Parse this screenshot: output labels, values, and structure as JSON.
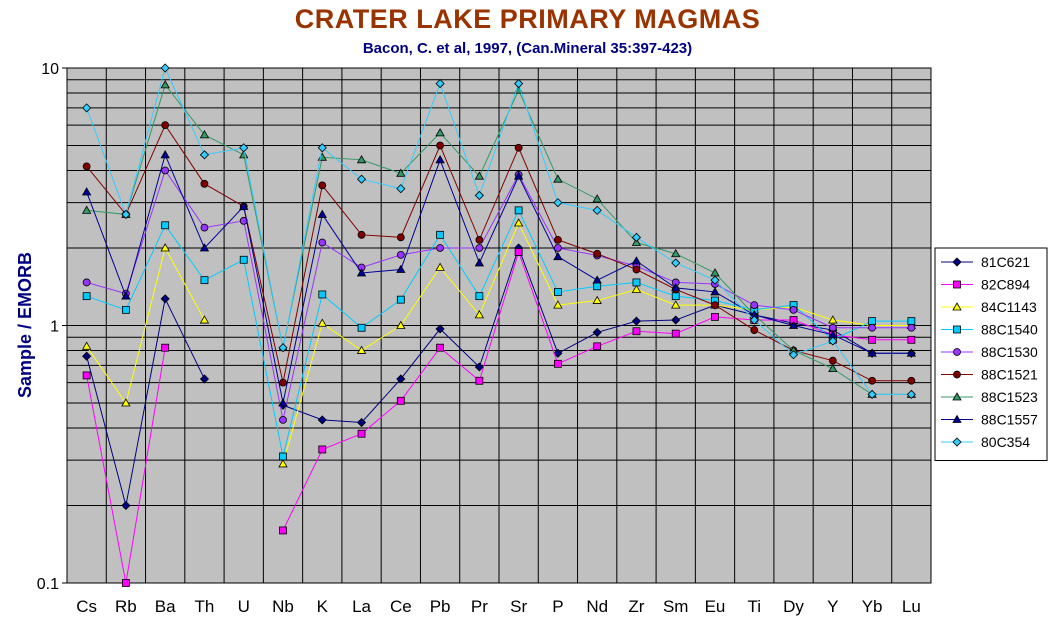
{
  "chart_data": {
    "type": "line",
    "title": "CRATER LAKE PRIMARY MAGMAS",
    "subtitle": "Bacon, C. et al, 1997, (Can.Mineral 35:397-423)",
    "xlabel": "",
    "ylabel": "Sample / EMORB",
    "yscale": "log",
    "ylim": [
      0.1,
      10
    ],
    "ytick_labels": [
      "10",
      "1",
      "0.1"
    ],
    "grid": true,
    "legend_position": "right",
    "categories": [
      "Cs",
      "Rb",
      "Ba",
      "Th",
      "U",
      "Nb",
      "K",
      "La",
      "Ce",
      "Pb",
      "Pr",
      "Sr",
      "P",
      "Nd",
      "Zr",
      "Sm",
      "Eu",
      "Ti",
      "Dy",
      "Y",
      "Yb",
      "Lu"
    ],
    "series": [
      {
        "name": "81C621",
        "color": "#000080",
        "marker": "diamond",
        "values": [
          0.76,
          0.2,
          1.27,
          0.62,
          null,
          0.49,
          0.43,
          0.42,
          0.62,
          0.97,
          0.69,
          2.0,
          0.78,
          0.94,
          1.04,
          1.05,
          1.2,
          1.1,
          1.02,
          0.96,
          0.78,
          0.78
        ]
      },
      {
        "name": "82C894",
        "color": "#ff00ff",
        "marker": "square",
        "values": [
          0.64,
          0.1,
          0.82,
          null,
          null,
          0.16,
          0.33,
          0.38,
          0.51,
          0.82,
          0.61,
          1.93,
          0.71,
          0.83,
          0.95,
          0.93,
          1.08,
          1.05,
          1.05,
          0.92,
          0.88,
          0.88
        ]
      },
      {
        "name": "84C1143",
        "color": "#ffff00",
        "marker": "triangle",
        "values": [
          0.83,
          0.5,
          2.0,
          1.05,
          null,
          0.29,
          1.02,
          0.8,
          1.0,
          1.68,
          1.1,
          2.5,
          1.2,
          1.25,
          1.38,
          1.2,
          1.2,
          1.15,
          1.18,
          1.05,
          1.0,
          1.0
        ]
      },
      {
        "name": "88C1540",
        "color": "#00ccff",
        "marker": "square",
        "values": [
          1.3,
          1.15,
          2.45,
          1.5,
          1.8,
          0.31,
          1.32,
          0.98,
          1.26,
          2.25,
          1.3,
          2.8,
          1.35,
          1.42,
          1.47,
          1.3,
          1.25,
          1.15,
          1.2,
          0.88,
          1.04,
          1.04
        ]
      },
      {
        "name": "88C1530",
        "color": "#9933ff",
        "marker": "circle",
        "values": [
          1.47,
          1.33,
          4.0,
          2.4,
          2.55,
          0.43,
          2.1,
          1.68,
          1.88,
          2.0,
          2.0,
          3.85,
          2.0,
          1.87,
          1.7,
          1.47,
          1.45,
          1.2,
          1.15,
          0.98,
          0.98,
          0.98
        ]
      },
      {
        "name": "88C1521",
        "color": "#800000",
        "marker": "circle",
        "values": [
          4.15,
          2.7,
          6.0,
          3.55,
          2.9,
          0.6,
          3.5,
          2.25,
          2.2,
          5.0,
          2.15,
          4.9,
          2.15,
          1.9,
          1.65,
          1.38,
          1.2,
          0.96,
          0.8,
          0.73,
          0.61,
          0.61
        ]
      },
      {
        "name": "88C1523",
        "color": "#339966",
        "marker": "triangle",
        "values": [
          2.8,
          2.7,
          8.6,
          5.5,
          4.6,
          0.82,
          4.5,
          4.4,
          3.9,
          5.6,
          3.8,
          8.2,
          3.7,
          3.1,
          2.1,
          1.9,
          1.6,
          1.1,
          0.8,
          0.68,
          0.54,
          0.54
        ]
      },
      {
        "name": "88C1557",
        "color": "#000099",
        "marker": "triangle",
        "values": [
          3.3,
          1.3,
          4.6,
          2.0,
          2.9,
          0.5,
          2.7,
          1.6,
          1.65,
          4.4,
          1.75,
          3.8,
          1.85,
          1.5,
          1.78,
          1.4,
          1.35,
          1.1,
          1.0,
          0.92,
          0.78,
          0.78
        ]
      },
      {
        "name": "80C354",
        "color": "#33ccff",
        "marker": "diamond",
        "values": [
          7.0,
          2.7,
          10.0,
          4.6,
          4.9,
          0.82,
          4.9,
          3.7,
          3.4,
          8.7,
          3.2,
          8.7,
          3.0,
          2.8,
          2.2,
          1.75,
          1.5,
          1.05,
          0.77,
          0.87,
          0.54,
          0.54
        ]
      }
    ]
  }
}
